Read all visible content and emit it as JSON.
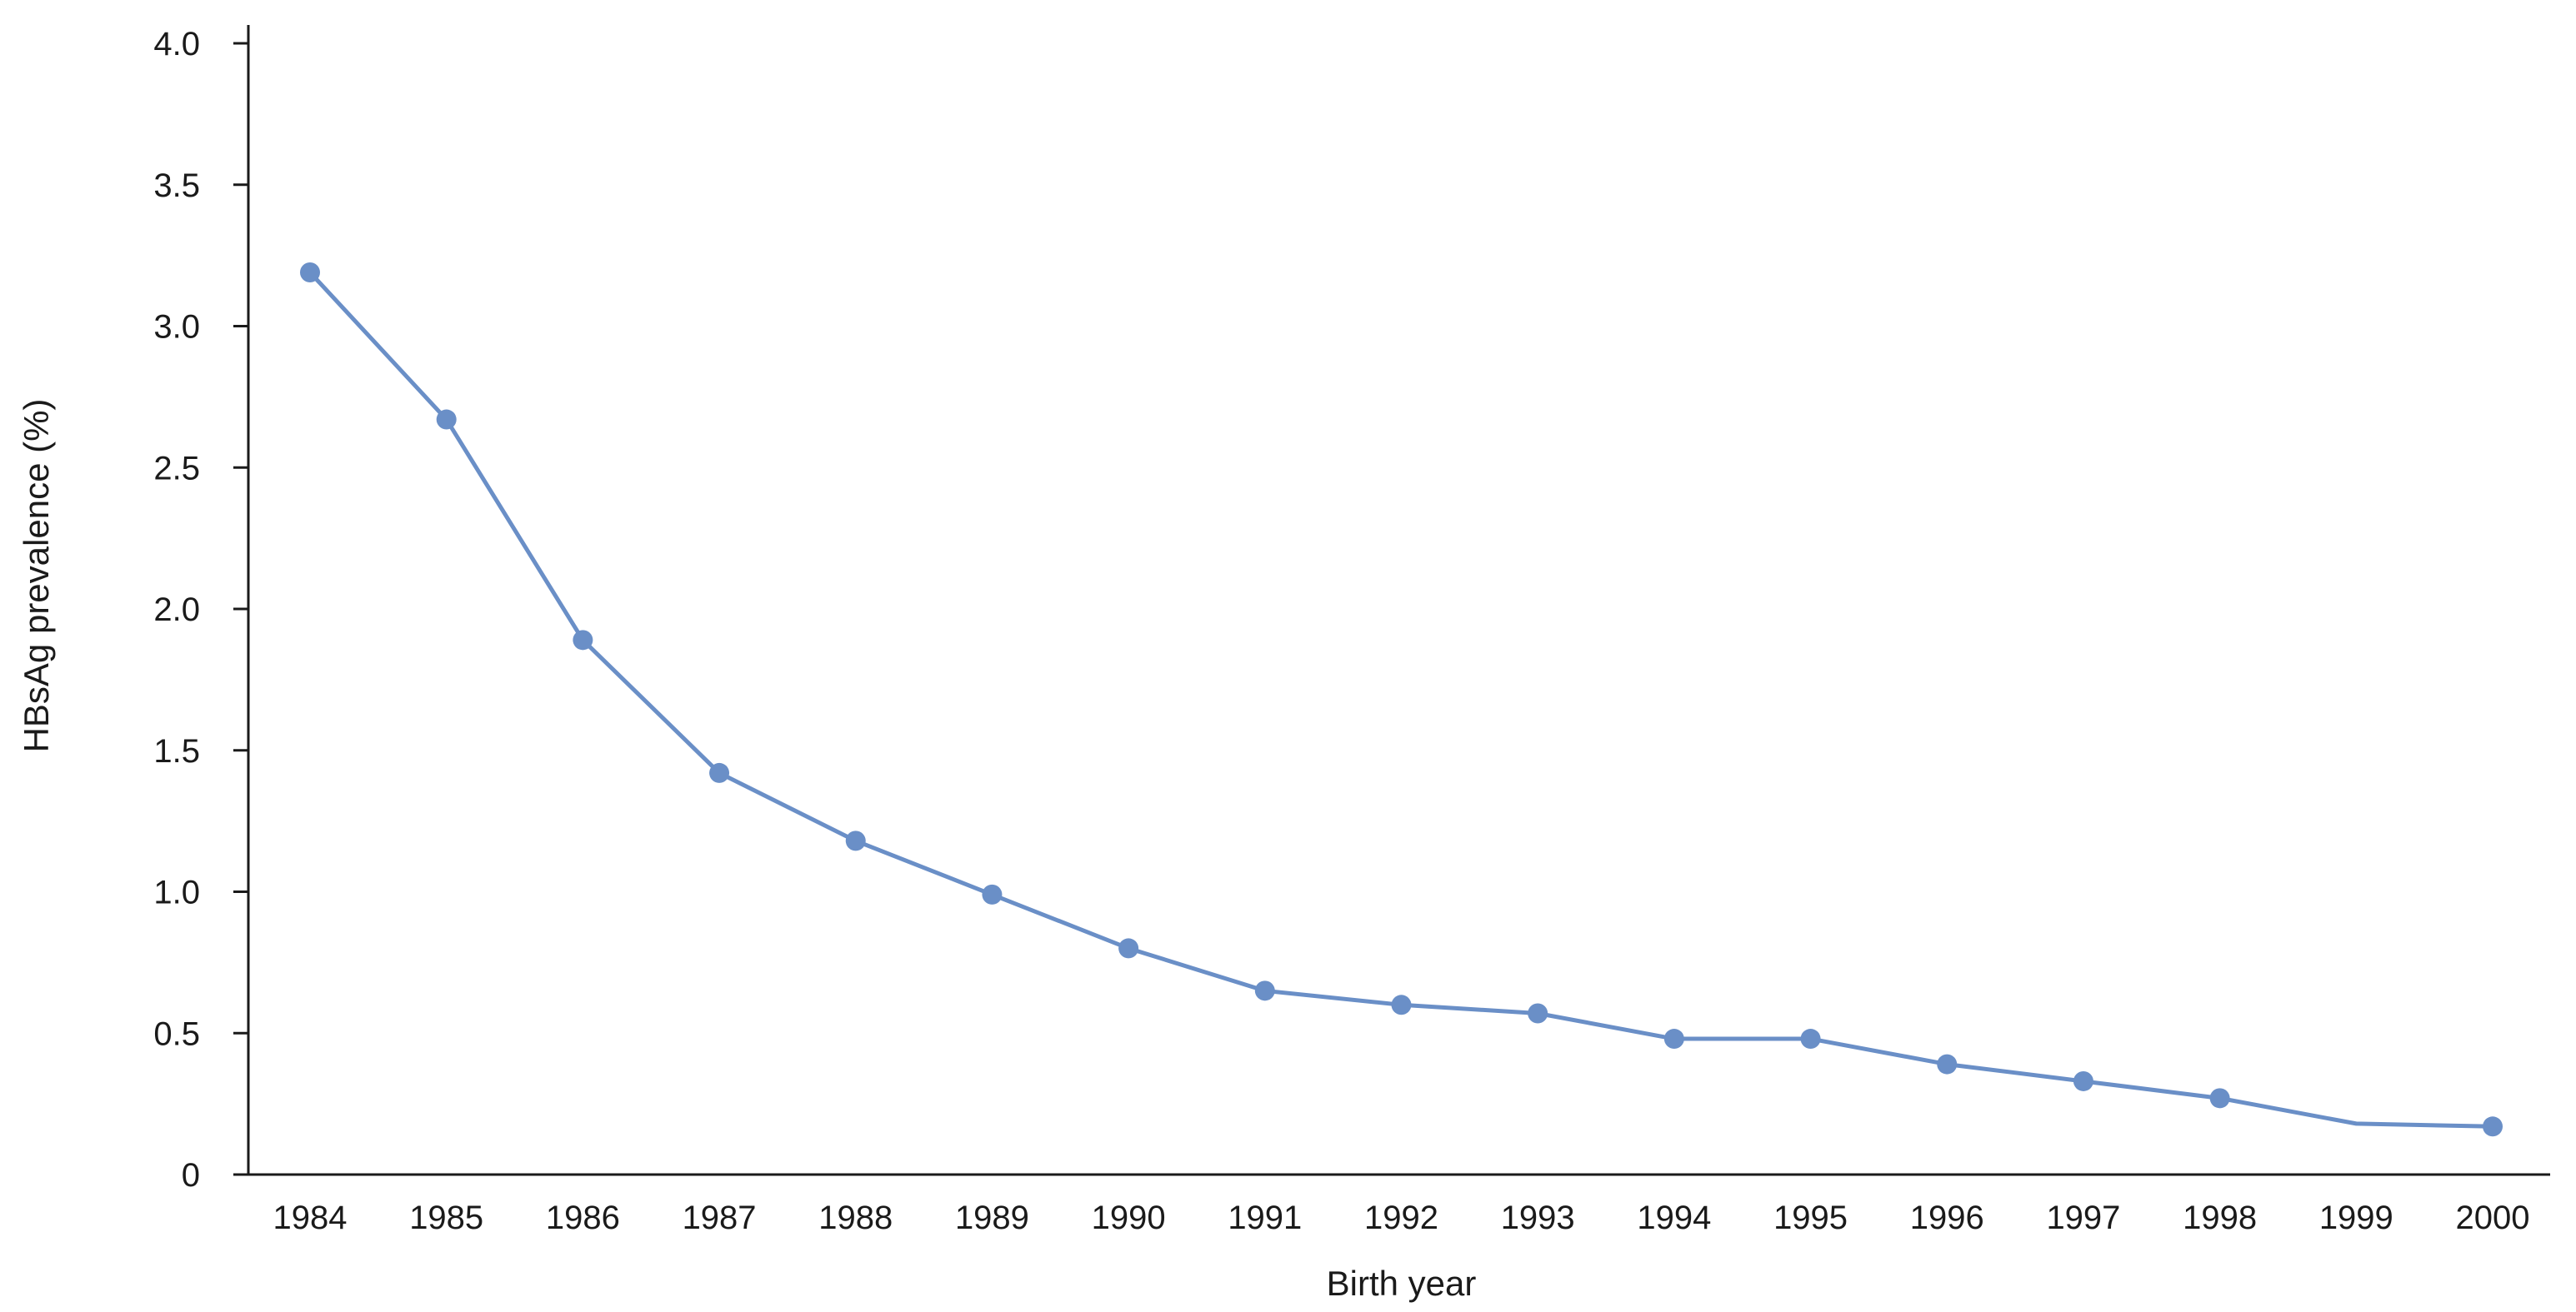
{
  "chart_data": {
    "type": "line",
    "title": "",
    "xlabel": "Birth year",
    "ylabel": "HBsAg prevalence (%)",
    "categories": [
      "1984",
      "1985",
      "1986",
      "1987",
      "1988",
      "1989",
      "1990",
      "1991",
      "1992",
      "1993",
      "1994",
      "1995",
      "1996",
      "1997",
      "1998",
      "1999",
      "2000"
    ],
    "series": [
      {
        "values": [
          3.19,
          2.67,
          1.89,
          1.42,
          1.18,
          0.99,
          0.8,
          0.65,
          0.6,
          0.57,
          0.48,
          0.48,
          0.39,
          0.33,
          0.27,
          0.18,
          0.17
        ],
        "markers": [
          true,
          true,
          true,
          true,
          true,
          true,
          true,
          true,
          true,
          true,
          true,
          true,
          true,
          true,
          true,
          false,
          true
        ],
        "color": "#6a8fc7"
      }
    ],
    "ylim": [
      0,
      4.0
    ],
    "yticks": [
      "0",
      "0.5",
      "1.0",
      "1.5",
      "2.0",
      "2.5",
      "3.0",
      "3.5",
      "4.0"
    ],
    "grid": false,
    "legend": "none"
  }
}
